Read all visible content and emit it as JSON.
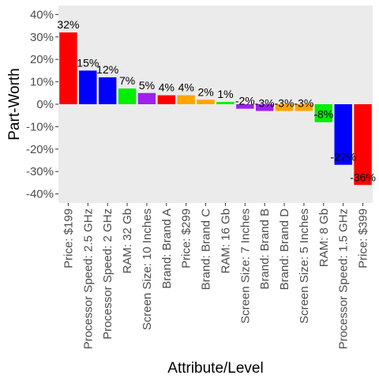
{
  "chart_data": {
    "type": "bar",
    "title": "",
    "xlabel": "Attribute/Level",
    "ylabel": "Part-Worth",
    "ylim": [
      -44,
      44
    ],
    "grid": false,
    "y_ticks": [
      40,
      30,
      20,
      10,
      0,
      -10,
      -20,
      -30,
      -40
    ],
    "y_tick_labels": [
      "40%",
      "30%",
      "20%",
      "10%",
      "0%",
      "-10%",
      "-20%",
      "-30%",
      "-40%"
    ],
    "categories": [
      "Price: $199",
      "Processor Speed: 2.5 GHz",
      "Processor Speed: 2 GHz",
      "RAM: 32 Gb",
      "Screen Size: 10 Inches",
      "Brand: Brand A",
      "Price: $299",
      "Brand: Brand C",
      "RAM: 16 Gb",
      "Screen Size: 7 Inches",
      "Brand: Brand B",
      "Brand: Brand D",
      "Screen Size: 5 Inches",
      "RAM: 8 Gb",
      "Processor Speed: 1.5 GHz",
      "Price: $399"
    ],
    "values": [
      32,
      15,
      12,
      7,
      5,
      4,
      4,
      2,
      1,
      -2,
      -3,
      -3,
      -3,
      -8,
      -27,
      -36
    ],
    "value_labels": [
      "32%",
      "15%",
      "12%",
      "7%",
      "5%",
      "4%",
      "4%",
      "2%",
      "1%",
      "-2%",
      "-3%",
      "-3%",
      "-3%",
      "-8%",
      "-27%",
      "-36%"
    ],
    "colors": [
      "#FF0000",
      "#0000FF",
      "#0000FF",
      "#00EE00",
      "#A020F0",
      "#FF0000",
      "#FFA500",
      "#FFA500",
      "#00EE00",
      "#A020F0",
      "#A020F0",
      "#FFA500",
      "#FFA500",
      "#00EE00",
      "#0000FF",
      "#FF0000"
    ],
    "panel_color": "#EBEBEB"
  }
}
